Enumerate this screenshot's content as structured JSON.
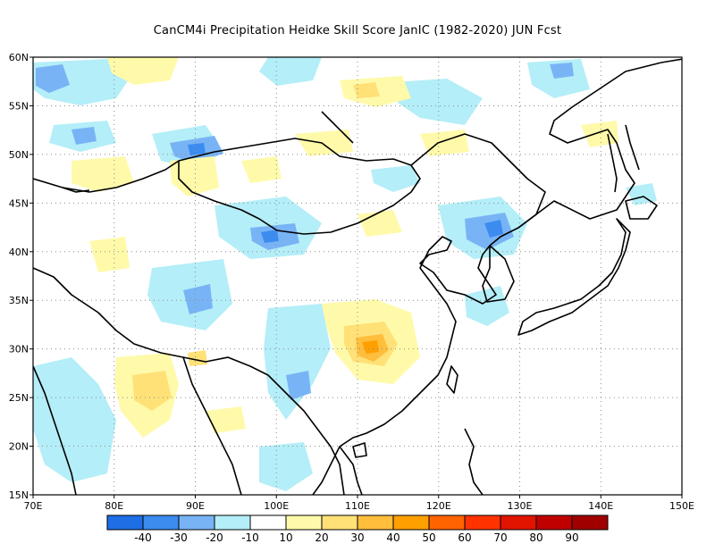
{
  "title": "CanCM4i  Precipitation Heidke Skill Score JanIC (1982-2020) JUN Fcst",
  "lon_labels": [
    "70E",
    "80E",
    "90E",
    "100E",
    "110E",
    "120E",
    "130E",
    "140E",
    "150E"
  ],
  "lat_labels": [
    "60N",
    "55N",
    "50N",
    "45N",
    "40N",
    "35N",
    "30N",
    "25N",
    "20N",
    "15N"
  ],
  "colorbar": {
    "colors": [
      "#1e6ee6",
      "#3c8cf0",
      "#78b4f5",
      "#b4eef8",
      "#ffffff",
      "#fffaaa",
      "#ffe178",
      "#ffbe3c",
      "#ffa000",
      "#ff6400",
      "#ff3200",
      "#e11400",
      "#c00000",
      "#a00000"
    ],
    "labels": [
      "-40",
      "-30",
      "-20",
      "-10",
      "10",
      "20",
      "30",
      "40",
      "50",
      "60",
      "70",
      "80",
      "90"
    ]
  },
  "colors": {
    "coast": "#000000",
    "grid": "#8c8c8c"
  }
}
